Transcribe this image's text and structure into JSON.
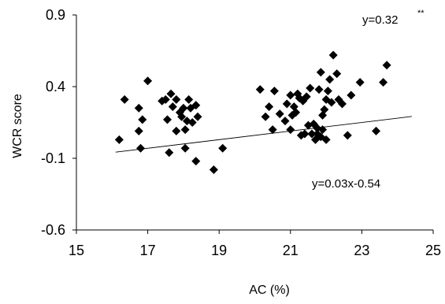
{
  "chart_data": {
    "type": "scatter",
    "title": "",
    "xlabel": "AC (%)",
    "ylabel": "WCR score",
    "xlim": [
      15,
      25
    ],
    "ylim": [
      -0.6,
      0.9
    ],
    "x_ticks": [
      15,
      17,
      19,
      21,
      23,
      25
    ],
    "x_tick_labels": [
      "15",
      "17",
      "19",
      "21",
      "23",
      "25"
    ],
    "y_ticks": [
      0.9,
      0.4,
      -0.1,
      -0.6
    ],
    "y_tick_labels": [
      "0.9",
      "0.4",
      "-0.1",
      "-0.6"
    ],
    "grid": false,
    "legend": "none",
    "marker": "diamond",
    "marker_color": "#000000",
    "trendline": {
      "slope": 0.03,
      "intercept": -0.54,
      "x_range": [
        16.1,
        24.4
      ]
    },
    "annotations": {
      "correlation": "y=0.32",
      "significance": "**",
      "equation": "y=0.03x-0.54"
    },
    "points": [
      {
        "x": 16.2,
        "y": 0.03
      },
      {
        "x": 16.35,
        "y": 0.31
      },
      {
        "x": 16.75,
        "y": 0.09
      },
      {
        "x": 16.75,
        "y": 0.25
      },
      {
        "x": 16.8,
        "y": -0.03
      },
      {
        "x": 16.85,
        "y": 0.17
      },
      {
        "x": 17.0,
        "y": 0.44
      },
      {
        "x": 17.4,
        "y": 0.3
      },
      {
        "x": 17.5,
        "y": 0.31
      },
      {
        "x": 17.55,
        "y": 0.17
      },
      {
        "x": 17.6,
        "y": -0.06
      },
      {
        "x": 17.65,
        "y": 0.35
      },
      {
        "x": 17.7,
        "y": 0.26
      },
      {
        "x": 17.8,
        "y": 0.31
      },
      {
        "x": 17.8,
        "y": 0.09
      },
      {
        "x": 17.9,
        "y": 0.22
      },
      {
        "x": 17.95,
        "y": 0.19
      },
      {
        "x": 18.0,
        "y": 0.25
      },
      {
        "x": 18.05,
        "y": 0.1
      },
      {
        "x": 18.05,
        "y": -0.03
      },
      {
        "x": 18.1,
        "y": 0.16
      },
      {
        "x": 18.15,
        "y": 0.31
      },
      {
        "x": 18.2,
        "y": 0.25
      },
      {
        "x": 18.25,
        "y": 0.15
      },
      {
        "x": 18.35,
        "y": 0.27
      },
      {
        "x": 18.35,
        "y": -0.12
      },
      {
        "x": 18.4,
        "y": 0.19
      },
      {
        "x": 18.85,
        "y": -0.18
      },
      {
        "x": 19.1,
        "y": -0.03
      },
      {
        "x": 20.15,
        "y": 0.38
      },
      {
        "x": 20.3,
        "y": 0.19
      },
      {
        "x": 20.4,
        "y": 0.26
      },
      {
        "x": 20.5,
        "y": 0.1
      },
      {
        "x": 20.55,
        "y": 0.37
      },
      {
        "x": 20.7,
        "y": 0.21
      },
      {
        "x": 20.85,
        "y": 0.16
      },
      {
        "x": 20.9,
        "y": 0.28
      },
      {
        "x": 21.0,
        "y": 0.34
      },
      {
        "x": 21.0,
        "y": 0.1
      },
      {
        "x": 21.05,
        "y": 0.2
      },
      {
        "x": 21.1,
        "y": 0.26
      },
      {
        "x": 21.15,
        "y": 0.22
      },
      {
        "x": 21.2,
        "y": 0.35
      },
      {
        "x": 21.25,
        "y": 0.32
      },
      {
        "x": 21.3,
        "y": 0.06
      },
      {
        "x": 21.35,
        "y": 0.3
      },
      {
        "x": 21.4,
        "y": 0.07
      },
      {
        "x": 21.45,
        "y": 0.33
      },
      {
        "x": 21.5,
        "y": 0.13
      },
      {
        "x": 21.55,
        "y": 0.39
      },
      {
        "x": 21.6,
        "y": 0.07
      },
      {
        "x": 21.65,
        "y": 0.14
      },
      {
        "x": 21.7,
        "y": 0.03
      },
      {
        "x": 21.75,
        "y": 0.11
      },
      {
        "x": 21.75,
        "y": 0.07
      },
      {
        "x": 21.8,
        "y": 0.38
      },
      {
        "x": 21.85,
        "y": 0.5
      },
      {
        "x": 21.85,
        "y": 0.05
      },
      {
        "x": 21.9,
        "y": 0.2
      },
      {
        "x": 21.9,
        "y": 0.1
      },
      {
        "x": 21.95,
        "y": 0.24
      },
      {
        "x": 22.0,
        "y": 0.31
      },
      {
        "x": 22.0,
        "y": 0.03
      },
      {
        "x": 22.05,
        "y": 0.37
      },
      {
        "x": 22.1,
        "y": 0.45
      },
      {
        "x": 22.15,
        "y": 0.29
      },
      {
        "x": 22.2,
        "y": 0.62
      },
      {
        "x": 22.3,
        "y": 0.49
      },
      {
        "x": 22.35,
        "y": 0.31
      },
      {
        "x": 22.45,
        "y": 0.28
      },
      {
        "x": 22.6,
        "y": 0.06
      },
      {
        "x": 22.7,
        "y": 0.34
      },
      {
        "x": 22.95,
        "y": 0.43
      },
      {
        "x": 23.4,
        "y": 0.09
      },
      {
        "x": 23.6,
        "y": 0.43
      },
      {
        "x": 23.7,
        "y": 0.55
      }
    ]
  }
}
